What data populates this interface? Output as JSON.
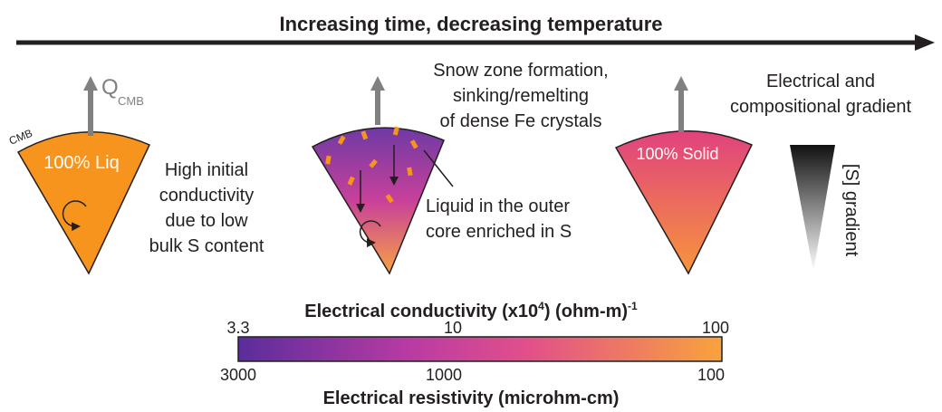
{
  "header": {
    "title": "Increasing time, decreasing temperature"
  },
  "panels": [
    {
      "flux_symbol": "Q",
      "flux_subscript": "CMB",
      "boundary_label": "CMB",
      "state_label": "100% Liq",
      "note": [
        "High initial",
        "conductivity",
        "due to low",
        "bulk S content"
      ]
    },
    {
      "note": [
        "Snow zone formation,",
        "sinking/remelting",
        "of dense Fe crystals"
      ],
      "callout": [
        "Liquid in the outer",
        "core enriched in S"
      ]
    },
    {
      "state_label": "100% Solid",
      "note": [
        "Electrical and",
        "compositional gradient"
      ],
      "gradient_label": "[S] gradient"
    }
  ],
  "colorbar": {
    "title_parts": [
      "Electrical conductivity (x10",
      "4",
      ") (ohm-m)",
      "-1"
    ],
    "top_ticks": [
      "3.3",
      "10",
      "100"
    ],
    "bottom_ticks": [
      "3000",
      "1000",
      "100"
    ],
    "bottom_title": "Electrical resistivity (microhm-cm)"
  }
}
